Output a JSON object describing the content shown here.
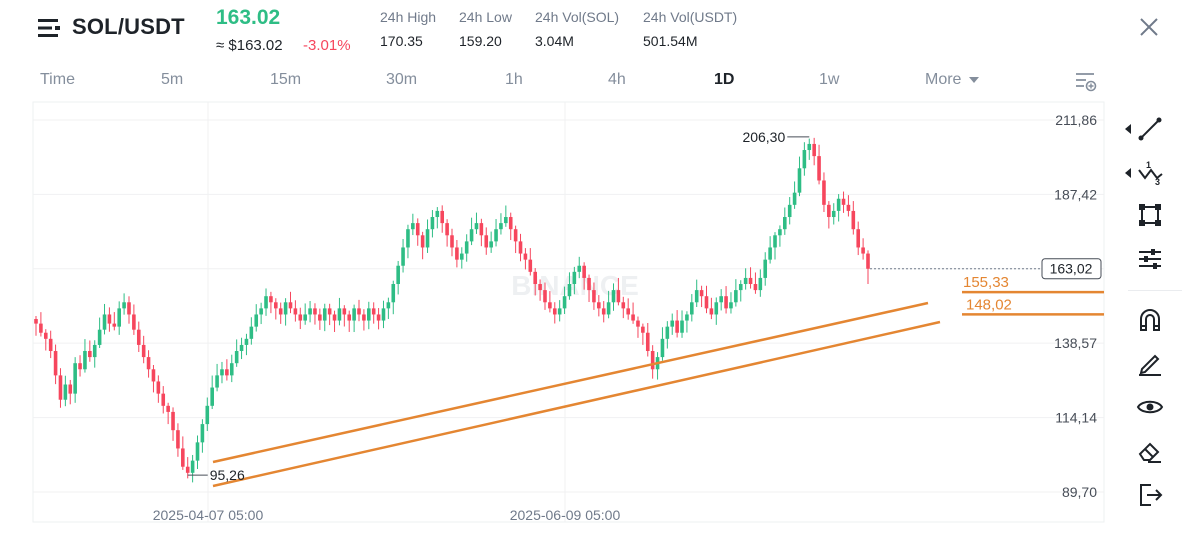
{
  "header": {
    "symbol": "SOL/USDT",
    "last_price": "163.02",
    "usd_price": "≈ $163.02",
    "change": "-3.01%",
    "stats": [
      {
        "label": "24h High",
        "value": "170.35"
      },
      {
        "label": "24h Low",
        "value": "159.20"
      },
      {
        "label": "24h Vol(SOL)",
        "value": "3.04M"
      },
      {
        "label": "24h Vol(USDT)",
        "value": "501.54M"
      }
    ],
    "icons": {
      "logo": "menu-logo-icon",
      "close": "close-icon"
    }
  },
  "tabs": {
    "items": [
      "Time",
      "5m",
      "15m",
      "30m",
      "1h",
      "4h",
      "1D",
      "1w",
      "More"
    ],
    "active": "1D",
    "settings_icon": "chart-settings-icon"
  },
  "chart": {
    "watermark": "BINANCE",
    "current_price_label": "163,02",
    "high_label": "206,30",
    "low_label": "95,26",
    "level_labels": [
      "155,33",
      "148,02"
    ],
    "y_ticks": [
      "211,86",
      "187,42",
      "163,02",
      "138,57",
      "114,14",
      "89,70"
    ],
    "x_ticks": [
      "2025-04-07 05:00",
      "2025-06-09 05:00"
    ],
    "colors": {
      "up": "#2ebd85",
      "down": "#f6465d",
      "trendline": "#e48632",
      "grid": "#f0f1f2"
    }
  },
  "chart_data": {
    "type": "candlestick",
    "interval": "1D",
    "ylim": [
      89.7,
      211.86
    ],
    "yticks": [
      211.86,
      187.42,
      163.02,
      138.57,
      114.14,
      89.7
    ],
    "xticks": [
      "2025-04-07 05:00",
      "2025-06-09 05:00"
    ],
    "closes": [
      145,
      142,
      140,
      136,
      128,
      120,
      125,
      122,
      132,
      130,
      136,
      134,
      138,
      143,
      148,
      145,
      144,
      150,
      152,
      148,
      143,
      138,
      134,
      130,
      126,
      122,
      118,
      116,
      110,
      104,
      98,
      96,
      100,
      106,
      112,
      118,
      124,
      128,
      130,
      128,
      132,
      136,
      138,
      140,
      144,
      148,
      150,
      154,
      152,
      150,
      148,
      152,
      150,
      148,
      146,
      148,
      150,
      148,
      146,
      150,
      148,
      146,
      150,
      148,
      146,
      150,
      148,
      146,
      150,
      148,
      146,
      150,
      152,
      158,
      164,
      170,
      176,
      178,
      174,
      170,
      176,
      180,
      182,
      178,
      174,
      170,
      166,
      168,
      172,
      176,
      178,
      174,
      170,
      172,
      176,
      178,
      180,
      176,
      172,
      168,
      166,
      162,
      158,
      156,
      152,
      150,
      148,
      150,
      154,
      158,
      162,
      164,
      160,
      156,
      152,
      150,
      148,
      152,
      156,
      152,
      150,
      148,
      146,
      144,
      142,
      136,
      130,
      134,
      140,
      144,
      146,
      142,
      146,
      148,
      152,
      156,
      154,
      150,
      148,
      152,
      154,
      150,
      152,
      156,
      158,
      160,
      158,
      156,
      160,
      166,
      170,
      174,
      176,
      180,
      184,
      188,
      196,
      202,
      204,
      200,
      192,
      184,
      180,
      182,
      186,
      184,
      182,
      176,
      170,
      168,
      163
    ],
    "horizontal_levels": [
      155.33,
      148.02
    ],
    "high": 206.3,
    "low": 95.26,
    "current_price": 163.02
  },
  "toolbar": {
    "tools": [
      "line-draw-icon",
      "fibonacci-tool-icon",
      "shape-tool-icon",
      "indicator-settings-icon",
      "magnet-icon",
      "pencil-icon",
      "eye-icon",
      "eraser-icon",
      "exit-icon"
    ]
  }
}
